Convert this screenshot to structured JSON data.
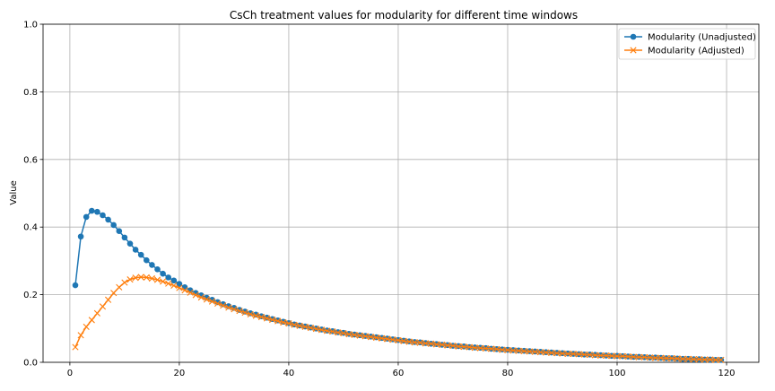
{
  "chart_data": {
    "type": "line",
    "title": "CsCh treatment values for modularity for different time windows",
    "xlabel": "",
    "ylabel": "Value",
    "xlim": [
      -4.9,
      125.9
    ],
    "ylim": [
      0,
      1.0
    ],
    "x_ticks": [
      0,
      20,
      40,
      60,
      80,
      100,
      120
    ],
    "y_ticks": [
      0.0,
      0.2,
      0.4,
      0.6,
      0.8,
      1.0
    ],
    "x_tick_labels": [
      "0",
      "20",
      "40",
      "60",
      "80",
      "100",
      "120"
    ],
    "y_tick_labels": [
      "0.0",
      "0.2",
      "0.4",
      "0.6",
      "0.8",
      "1.0"
    ],
    "grid": true,
    "legend_position": "top-right",
    "x": [
      1,
      2,
      3,
      4,
      5,
      6,
      7,
      8,
      9,
      10,
      11,
      12,
      13,
      14,
      15,
      16,
      17,
      18,
      19,
      20,
      21,
      22,
      23,
      24,
      25,
      26,
      27,
      28,
      29,
      30,
      31,
      32,
      33,
      34,
      35,
      36,
      37,
      38,
      39,
      40,
      41,
      42,
      43,
      44,
      45,
      46,
      47,
      48,
      49,
      50,
      51,
      52,
      53,
      54,
      55,
      56,
      57,
      58,
      59,
      60,
      61,
      62,
      63,
      64,
      65,
      66,
      67,
      68,
      69,
      70,
      71,
      72,
      73,
      74,
      75,
      76,
      77,
      78,
      79,
      80,
      81,
      82,
      83,
      84,
      85,
      86,
      87,
      88,
      89,
      90,
      91,
      92,
      93,
      94,
      95,
      96,
      97,
      98,
      99,
      100,
      101,
      102,
      103,
      104,
      105,
      106,
      107,
      108,
      109,
      110,
      111,
      112,
      113,
      114,
      115,
      116,
      117,
      118,
      119
    ],
    "series": [
      {
        "name": "Modularity (Unadjusted)",
        "color": "#1f77b4",
        "marker": "circle",
        "values": [
          0.228,
          0.372,
          0.43,
          0.448,
          0.445,
          0.435,
          0.422,
          0.406,
          0.388,
          0.369,
          0.351,
          0.333,
          0.318,
          0.302,
          0.288,
          0.275,
          0.262,
          0.251,
          0.242,
          0.232,
          0.222,
          0.213,
          0.205,
          0.198,
          0.191,
          0.185,
          0.178,
          0.172,
          0.166,
          0.161,
          0.155,
          0.15,
          0.145,
          0.141,
          0.136,
          0.132,
          0.128,
          0.124,
          0.12,
          0.116,
          0.112,
          0.109,
          0.106,
          0.103,
          0.1,
          0.097,
          0.094,
          0.092,
          0.089,
          0.087,
          0.084,
          0.082,
          0.08,
          0.078,
          0.076,
          0.074,
          0.072,
          0.07,
          0.068,
          0.066,
          0.064,
          0.062,
          0.06,
          0.059,
          0.057,
          0.055,
          0.054,
          0.052,
          0.051,
          0.049,
          0.048,
          0.047,
          0.045,
          0.044,
          0.043,
          0.042,
          0.04,
          0.039,
          0.038,
          0.037,
          0.036,
          0.035,
          0.034,
          0.033,
          0.032,
          0.031,
          0.03,
          0.029,
          0.028,
          0.027,
          0.026,
          0.025,
          0.024,
          0.023,
          0.023,
          0.022,
          0.021,
          0.02,
          0.019,
          0.019,
          0.018,
          0.017,
          0.016,
          0.016,
          0.015,
          0.014,
          0.014,
          0.013,
          0.012,
          0.012,
          0.011,
          0.01,
          0.01,
          0.009,
          0.009,
          0.008,
          0.008,
          0.007,
          0.007
        ]
      },
      {
        "name": "Modularity (Adjusted)",
        "color": "#ff7f0e",
        "marker": "x",
        "values": [
          0.045,
          0.08,
          0.105,
          0.125,
          0.145,
          0.165,
          0.185,
          0.205,
          0.222,
          0.236,
          0.245,
          0.25,
          0.252,
          0.251,
          0.248,
          0.244,
          0.239,
          0.233,
          0.227,
          0.22,
          0.213,
          0.206,
          0.199,
          0.192,
          0.186,
          0.18,
          0.174,
          0.168,
          0.162,
          0.157,
          0.152,
          0.147,
          0.142,
          0.138,
          0.134,
          0.13,
          0.126,
          0.122,
          0.118,
          0.115,
          0.111,
          0.108,
          0.105,
          0.102,
          0.099,
          0.096,
          0.093,
          0.091,
          0.088,
          0.086,
          0.083,
          0.081,
          0.079,
          0.077,
          0.075,
          0.073,
          0.071,
          0.069,
          0.067,
          0.065,
          0.063,
          0.061,
          0.059,
          0.058,
          0.056,
          0.055,
          0.053,
          0.052,
          0.05,
          0.049,
          0.047,
          0.046,
          0.045,
          0.043,
          0.042,
          0.041,
          0.04,
          0.039,
          0.037,
          0.036,
          0.035,
          0.034,
          0.033,
          0.032,
          0.031,
          0.03,
          0.029,
          0.028,
          0.027,
          0.026,
          0.025,
          0.025,
          0.024,
          0.023,
          0.022,
          0.021,
          0.02,
          0.02,
          0.019,
          0.018,
          0.018,
          0.017,
          0.016,
          0.015,
          0.015,
          0.014,
          0.013,
          0.013,
          0.012,
          0.012,
          0.011,
          0.01,
          0.01,
          0.009,
          0.009,
          0.008,
          0.008,
          0.007,
          0.007
        ]
      }
    ]
  }
}
